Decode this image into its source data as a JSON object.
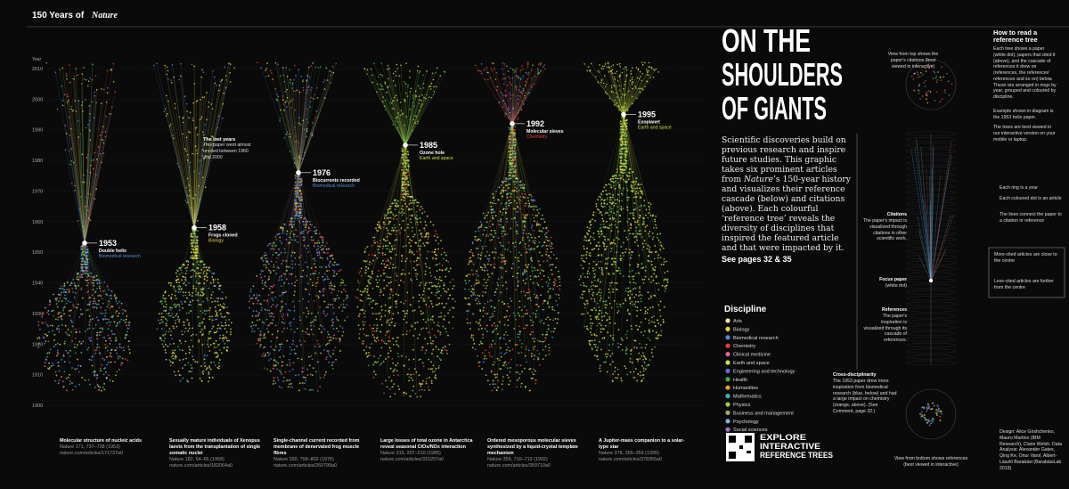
{
  "header": {
    "title_prefix": "150 Years of",
    "title_emph": "Nature"
  },
  "axis": {
    "label": "Year",
    "years": [
      2010,
      2000,
      1990,
      1980,
      1970,
      1960,
      1950,
      1940,
      1930,
      1920,
      1910,
      1900
    ]
  },
  "trees": [
    {
      "year": 1953,
      "name": "Double helix",
      "discipline": "Biomedical research",
      "caption": "Molecular structure of nucleic acids",
      "citation": "Nature 171, 737–738 (1953)",
      "url": "nature.com/articles/171737a0"
    },
    {
      "year": 1958,
      "name": "Frogs cloned",
      "discipline": "Biology",
      "note_title": "The lost years",
      "note": "This paper went almost uncited between 1960 and 2000",
      "caption": "Sexually mature individuals of Xenopus laevis from the transplantation of single somatic nuclei",
      "citation": "Nature 182, 64–65 (1958)",
      "url": "nature.com/articles/182064a0"
    },
    {
      "year": 1976,
      "name": "Biocurrents recorded",
      "discipline": "Biomedical research",
      "caption": "Single-channel current recorded from membrane of denervated frog muscle fibres",
      "citation": "Nature 260, 799–802 (1976)",
      "url": "nature.com/articles/260799a0"
    },
    {
      "year": 1985,
      "name": "Ozone hole",
      "discipline": "Earth and space",
      "caption": "Large losses of total ozone in Antarctica reveal seasonal ClOx/NOx interaction",
      "citation": "Nature 315, 207–210 (1985)",
      "url": "nature.com/articles/315207a0"
    },
    {
      "year": 1992,
      "name": "Molecular sieves",
      "discipline": "Chemistry",
      "caption": "Ordered mesoporous molecular sieves synthesized by a liquid-crystal template mechanism",
      "citation": "Nature 359, 710–712 (1992)",
      "url": "nature.com/articles/359710a0"
    },
    {
      "year": 1995,
      "name": "Exoplanet",
      "discipline": "Earth and space",
      "caption": "A Jupiter-mass companion to a solar-type star",
      "citation": "Nature 378, 355–359 (1995)",
      "url": "nature.com/articles/378355a0"
    }
  ],
  "headline": [
    "ON THE",
    "SHOULDERS",
    "OF GIANTS"
  ],
  "intro": [
    "Scientific discoveries build on previous research and inspire future studies. This graphic takes six prominent articles from ",
    "Nature",
    "’s 150-year history and visualizes their reference cascade (below) and citations (above). Each colourful ‘reference tree’ reveals the diversity of disciplines that inspired the featured article and that were impacted by it."
  ],
  "see_pages": "See pages 32 & 35",
  "legend": {
    "title": "Discipline",
    "items": [
      {
        "name": "Arts",
        "color": "#efe9a0"
      },
      {
        "name": "Biology",
        "color": "#e6d43a"
      },
      {
        "name": "Biomedical research",
        "color": "#4a8fdc"
      },
      {
        "name": "Chemistry",
        "color": "#e2432b"
      },
      {
        "name": "Clinical medicine",
        "color": "#e8609e"
      },
      {
        "name": "Earth and space",
        "color": "#c8e046"
      },
      {
        "name": "Engineering and technology",
        "color": "#6b68d4"
      },
      {
        "name": "Health",
        "color": "#3fae4e"
      },
      {
        "name": "Humanities",
        "color": "#ea9a38"
      },
      {
        "name": "Mathematics",
        "color": "#39b7ae"
      },
      {
        "name": "Physics",
        "color": "#98d14a"
      },
      {
        "name": "Business and management",
        "color": "#a7a565"
      },
      {
        "name": "Psychology",
        "color": "#82b3e3"
      },
      {
        "name": "Social sciences",
        "color": "#a16fc2"
      }
    ]
  },
  "explore": [
    "EXPLORE",
    "INTERACTIVE",
    "REFERENCE TREES"
  ],
  "how_to": {
    "title": "How to read a reference tree",
    "text": "Each tree shows a paper (white dot), papers that cited it (above), and the cascade of references it drew on (references, the references' references and so on) below. These are arranged in rings by year, grouped and coloured by discipline.",
    "example": "Example shown in diagram is the 1953 helix paper.",
    "best": "The trees are best viewed in our interactive version on your mobile or laptop.",
    "top_view": "View from top shows the paper's citations (best viewed in interactive)",
    "ring": "Each ring is a year",
    "dot": "Each coloured dot is an article",
    "lines": "The lines connect the paper to a citation or reference",
    "citations_title": "Citations",
    "citations": "The paper's impact is visualized through citations in other scientific work.",
    "more_cited": "More-cited articles are close to the centre",
    "less_cited": "Less-cited articles are further from the centre",
    "focus_title": "Focus paper",
    "focus": "(white dot)",
    "references_title": "References",
    "references": "The paper's inspiration is visualized through its cascade of references.",
    "cross_title": "Cross-disciplinarity",
    "cross": "The 1953 paper drew more inspiration from biomedical research (blue, below) and had a large impact on chemistry (orange, above). (See Comment, page 32.)",
    "bottom_view": "View from bottom shows references (best viewed in interactive)"
  },
  "credits": "Design: Alice Grishchenko, Mauro Martino (IBM Research), Claire Welsh. Data Analysis: Alexander Gates, Qing Ke, Onur Varol, Albert-László Barabási (BarabásiLab 2019)"
}
